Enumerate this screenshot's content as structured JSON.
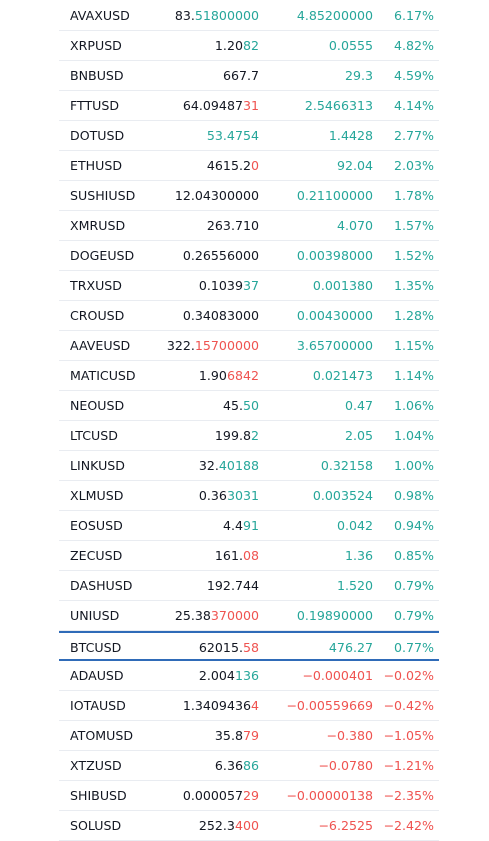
{
  "colors": {
    "up": "#26a69a",
    "down": "#ef5350",
    "text": "#131722",
    "selection": "#2f6bb8"
  },
  "rows": [
    {
      "symbol": "AVAXUSD",
      "last_plain": "83.",
      "last_hl": "51800000",
      "last_dir": "up",
      "change": "4.85200000",
      "change_dir": "up",
      "pct": "6.17%",
      "pct_dir": "up"
    },
    {
      "symbol": "XRPUSD",
      "last_plain": "1.20",
      "last_hl": "82",
      "last_dir": "up",
      "change": "0.0555",
      "change_dir": "up",
      "pct": "4.82%",
      "pct_dir": "up"
    },
    {
      "symbol": "BNBUSD",
      "last_plain": "667.7",
      "last_hl": "",
      "last_dir": "up",
      "change": "29.3",
      "change_dir": "up",
      "pct": "4.59%",
      "pct_dir": "up"
    },
    {
      "symbol": "FTTUSD",
      "last_plain": "64.09487",
      "last_hl": "31",
      "last_dir": "down",
      "change": "2.5466313",
      "change_dir": "up",
      "pct": "4.14%",
      "pct_dir": "up"
    },
    {
      "symbol": "DOTUSD",
      "last_plain": "",
      "last_hl": "53.4754",
      "last_dir": "up",
      "change": "1.4428",
      "change_dir": "up",
      "pct": "2.77%",
      "pct_dir": "up"
    },
    {
      "symbol": "ETHUSD",
      "last_plain": "4615.2",
      "last_hl": "0",
      "last_dir": "down",
      "change": "92.04",
      "change_dir": "up",
      "pct": "2.03%",
      "pct_dir": "up"
    },
    {
      "symbol": "SUSHIUSD",
      "last_plain": "12.04300000",
      "last_hl": "",
      "last_dir": "up",
      "change": "0.21100000",
      "change_dir": "up",
      "pct": "1.78%",
      "pct_dir": "up"
    },
    {
      "symbol": "XMRUSD",
      "last_plain": "263.710",
      "last_hl": "",
      "last_dir": "up",
      "change": "4.070",
      "change_dir": "up",
      "pct": "1.57%",
      "pct_dir": "up"
    },
    {
      "symbol": "DOGEUSD",
      "last_plain": "0.26556000",
      "last_hl": "",
      "last_dir": "up",
      "change": "0.00398000",
      "change_dir": "up",
      "pct": "1.52%",
      "pct_dir": "up"
    },
    {
      "symbol": "TRXUSD",
      "last_plain": "0.1039",
      "last_hl": "37",
      "last_dir": "up",
      "change": "0.001380",
      "change_dir": "up",
      "pct": "1.35%",
      "pct_dir": "up"
    },
    {
      "symbol": "CROUSD",
      "last_plain": "0.34083000",
      "last_hl": "",
      "last_dir": "up",
      "change": "0.00430000",
      "change_dir": "up",
      "pct": "1.28%",
      "pct_dir": "up"
    },
    {
      "symbol": "AAVEUSD",
      "last_plain": "322.",
      "last_hl": "15700000",
      "last_dir": "down",
      "change": "3.65700000",
      "change_dir": "up",
      "pct": "1.15%",
      "pct_dir": "up"
    },
    {
      "symbol": "MATICUSD",
      "last_plain": "1.90",
      "last_hl": "6842",
      "last_dir": "down",
      "change": "0.021473",
      "change_dir": "up",
      "pct": "1.14%",
      "pct_dir": "up"
    },
    {
      "symbol": "NEOUSD",
      "last_plain": "45.",
      "last_hl": "50",
      "last_dir": "up",
      "change": "0.47",
      "change_dir": "up",
      "pct": "1.06%",
      "pct_dir": "up"
    },
    {
      "symbol": "LTCUSD",
      "last_plain": "199.8",
      "last_hl": "2",
      "last_dir": "up",
      "change": "2.05",
      "change_dir": "up",
      "pct": "1.04%",
      "pct_dir": "up"
    },
    {
      "symbol": "LINKUSD",
      "last_plain": "32.",
      "last_hl": "40188",
      "last_dir": "up",
      "change": "0.32158",
      "change_dir": "up",
      "pct": "1.00%",
      "pct_dir": "up"
    },
    {
      "symbol": "XLMUSD",
      "last_plain": "0.36",
      "last_hl": "3031",
      "last_dir": "up",
      "change": "0.003524",
      "change_dir": "up",
      "pct": "0.98%",
      "pct_dir": "up"
    },
    {
      "symbol": "EOSUSD",
      "last_plain": "4.4",
      "last_hl": "91",
      "last_dir": "up",
      "change": "0.042",
      "change_dir": "up",
      "pct": "0.94%",
      "pct_dir": "up"
    },
    {
      "symbol": "ZECUSD",
      "last_plain": "161.",
      "last_hl": "08",
      "last_dir": "down",
      "change": "1.36",
      "change_dir": "up",
      "pct": "0.85%",
      "pct_dir": "up"
    },
    {
      "symbol": "DASHUSD",
      "last_plain": "192.744",
      "last_hl": "",
      "last_dir": "up",
      "change": "1.520",
      "change_dir": "up",
      "pct": "0.79%",
      "pct_dir": "up"
    },
    {
      "symbol": "UNIUSD",
      "last_plain": "25.38",
      "last_hl": "370000",
      "last_dir": "down",
      "change": "0.19890000",
      "change_dir": "up",
      "pct": "0.79%",
      "pct_dir": "up"
    },
    {
      "symbol": "BTCUSD",
      "last_plain": "62015.",
      "last_hl": "58",
      "last_dir": "down",
      "change": "476.27",
      "change_dir": "up",
      "pct": "0.77%",
      "pct_dir": "up",
      "selected": true
    },
    {
      "symbol": "ADAUSD",
      "last_plain": "2.004",
      "last_hl": "136",
      "last_dir": "up",
      "change": "−0.000401",
      "change_dir": "down",
      "pct": "−0.02%",
      "pct_dir": "down"
    },
    {
      "symbol": "IOTAUSD",
      "last_plain": "1.3409436",
      "last_hl": "4",
      "last_dir": "down",
      "change": "−0.00559669",
      "change_dir": "down",
      "pct": "−0.42%",
      "pct_dir": "down"
    },
    {
      "symbol": "ATOMUSD",
      "last_plain": "35.8",
      "last_hl": "79",
      "last_dir": "down",
      "change": "−0.380",
      "change_dir": "down",
      "pct": "−1.05%",
      "pct_dir": "down"
    },
    {
      "symbol": "XTZUSD",
      "last_plain": "6.36",
      "last_hl": "86",
      "last_dir": "up",
      "change": "−0.0780",
      "change_dir": "down",
      "pct": "−1.21%",
      "pct_dir": "down"
    },
    {
      "symbol": "SHIBUSD",
      "last_plain": "0.000057",
      "last_hl": "29",
      "last_dir": "down",
      "change": "−0.00000138",
      "change_dir": "down",
      "pct": "−2.35%",
      "pct_dir": "down"
    },
    {
      "symbol": "SOLUSD",
      "last_plain": "252.3",
      "last_hl": "400",
      "last_dir": "down",
      "change": "−6.2525",
      "change_dir": "down",
      "pct": "−2.42%",
      "pct_dir": "down"
    }
  ]
}
